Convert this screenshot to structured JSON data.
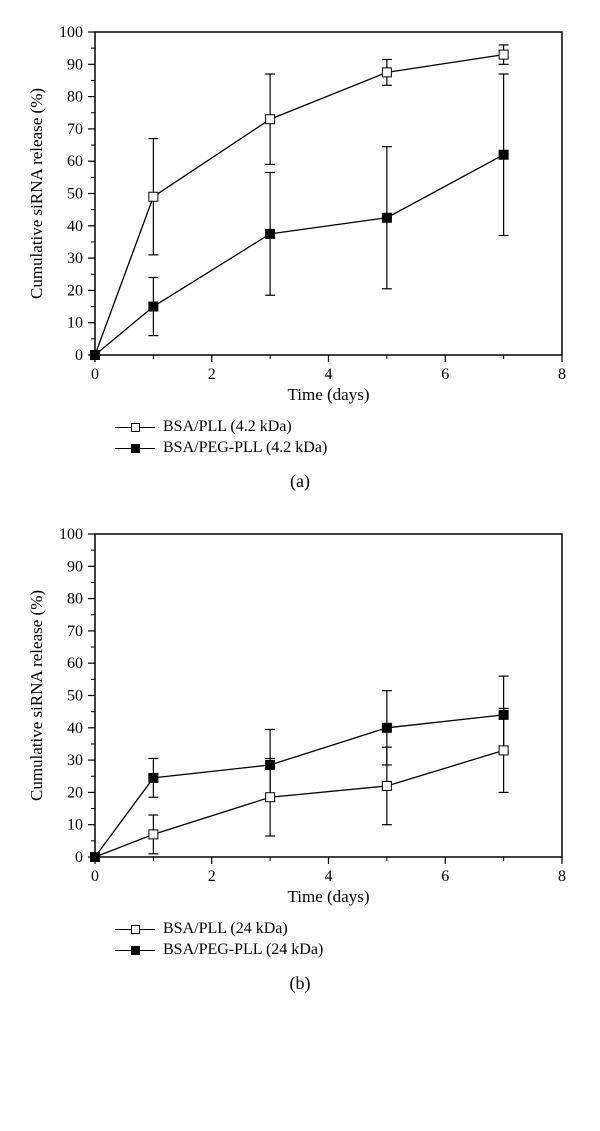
{
  "panels": [
    {
      "label": "(a)",
      "xlabel": "Time (days)",
      "ylabel": "Cumulative siRNA release (%)",
      "xlim": [
        0,
        8
      ],
      "ylim": [
        0,
        100
      ],
      "xticks_major": [
        0,
        2,
        4,
        6,
        8
      ],
      "xticks_minor": [
        1,
        3,
        5,
        7
      ],
      "yticks": [
        0,
        10,
        20,
        30,
        40,
        50,
        60,
        70,
        80,
        90,
        100
      ],
      "series": [
        {
          "name": "BSA/PLL (4.2 kDa)",
          "marker": "open",
          "points": [
            {
              "x": 0,
              "y": 0,
              "err": 0
            },
            {
              "x": 1,
              "y": 49,
              "err": 18
            },
            {
              "x": 3,
              "y": 73,
              "err": 14
            },
            {
              "x": 5,
              "y": 87.5,
              "err": 4
            },
            {
              "x": 7,
              "y": 93,
              "err": 3
            }
          ]
        },
        {
          "name": "BSA/PEG-PLL (4.2 kDa)",
          "marker": "filled",
          "points": [
            {
              "x": 0,
              "y": 0,
              "err": 0
            },
            {
              "x": 1,
              "y": 15,
              "err": 9
            },
            {
              "x": 3,
              "y": 37.5,
              "err": 19
            },
            {
              "x": 5,
              "y": 42.5,
              "err": 22
            },
            {
              "x": 7,
              "y": 62,
              "err": 25
            }
          ]
        }
      ]
    },
    {
      "label": "(b)",
      "xlabel": "Time (days)",
      "ylabel": "Cumulative siRNA release (%)",
      "xlim": [
        0,
        8
      ],
      "ylim": [
        0,
        100
      ],
      "xticks_major": [
        0,
        2,
        4,
        6,
        8
      ],
      "xticks_minor": [
        1,
        3,
        5,
        7
      ],
      "yticks": [
        0,
        10,
        20,
        30,
        40,
        50,
        60,
        70,
        80,
        90,
        100
      ],
      "series": [
        {
          "name": "BSA/PLL (24 kDa)",
          "marker": "open",
          "points": [
            {
              "x": 0,
              "y": 0,
              "err": 0
            },
            {
              "x": 1,
              "y": 7,
              "err": 6
            },
            {
              "x": 3,
              "y": 18.5,
              "err": 12
            },
            {
              "x": 5,
              "y": 22,
              "err": 12
            },
            {
              "x": 7,
              "y": 33,
              "err": 13
            }
          ]
        },
        {
          "name": "BSA/PEG-PLL (24 kDa)",
          "marker": "filled",
          "points": [
            {
              "x": 0,
              "y": 0,
              "err": 0
            },
            {
              "x": 1,
              "y": 24.5,
              "err": 6
            },
            {
              "x": 3,
              "y": 28.5,
              "err": 11
            },
            {
              "x": 5,
              "y": 40,
              "err": 11.5
            },
            {
              "x": 7,
              "y": 44,
              "err": 12
            }
          ]
        }
      ]
    }
  ],
  "chart_style": {
    "marker_size": 9,
    "err_cap": 10,
    "colors": {
      "axis": "#000000",
      "bg": "#ffffff",
      "line": "#000000"
    }
  }
}
